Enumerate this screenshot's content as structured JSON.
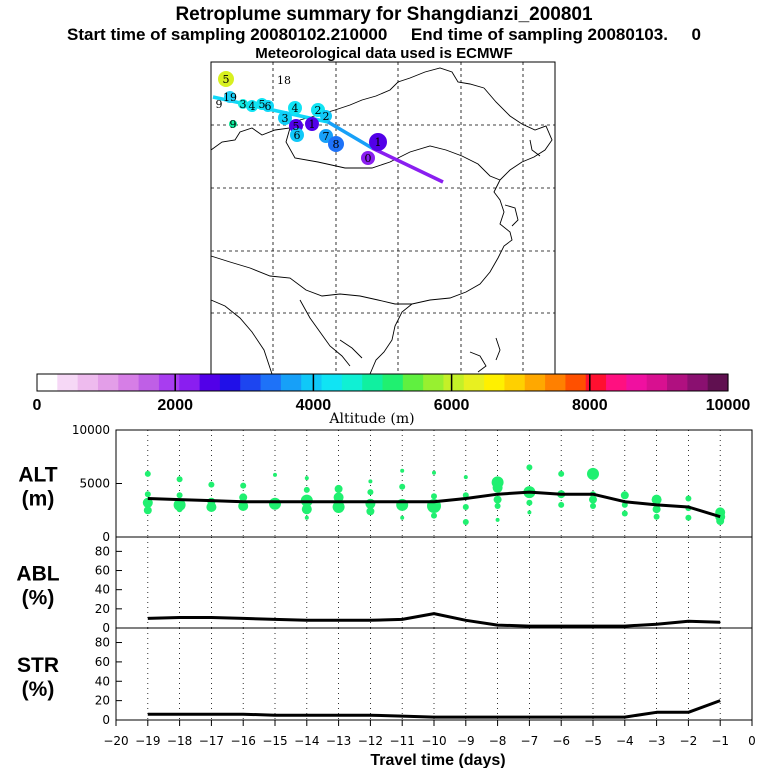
{
  "header": {
    "title": "Retroplume summary for Shangdianzi_200801",
    "subtitle": "Start time of sampling 20080102.210000     End time of sampling 20080103.     0",
    "met": "Meteorological data used is ECMWF"
  },
  "colorbar": {
    "label": "Altitude (m)",
    "ticks": [
      "0",
      "2000",
      "4000",
      "6000",
      "8000",
      "10000"
    ],
    "colors": [
      "#ffffff",
      "#f6d8f6",
      "#eebbee",
      "#e39ee8",
      "#d67ee6",
      "#bf5fe6",
      "#a83df0",
      "#8a1ef0",
      "#5200e8",
      "#2010e8",
      "#1d45f0",
      "#1e72f8",
      "#17a0f8",
      "#10c8f8",
      "#10e4f4",
      "#10f0d4",
      "#10f0a0",
      "#20f070",
      "#60f040",
      "#98f030",
      "#c4f028",
      "#e8f020",
      "#fff000",
      "#ffd000",
      "#ffa800",
      "#ff8000",
      "#ff5000",
      "#ff1030",
      "#ff1080",
      "#f010a0",
      "#d81090",
      "#b01080",
      "#8a1070",
      "#601050"
    ]
  },
  "map": {
    "plume_labels": [
      "5",
      "18",
      "19",
      "4",
      "5",
      "6",
      "3",
      "4",
      "2",
      "9",
      "9",
      "3",
      "1",
      "2",
      "5",
      "6",
      "7",
      "8",
      "1",
      "0"
    ]
  },
  "chart_data": [
    {
      "type": "scatter+line",
      "name": "ALT",
      "ylabel": "ALT\n(m)",
      "ylabel_line1": "ALT",
      "ylabel_line2": "(m)",
      "ylim": [
        0,
        10000
      ],
      "yticks": [
        "0",
        "5000",
        "10000"
      ],
      "xlim": [
        -20,
        0
      ],
      "x": [
        -19,
        -18,
        -17,
        -16,
        -15,
        -14,
        -13,
        -12,
        -11,
        -10,
        -9,
        -8,
        -7,
        -6,
        -5,
        -4,
        -3,
        -2,
        -1
      ],
      "values": [
        3600,
        3500,
        3400,
        3300,
        3300,
        3300,
        3300,
        3300,
        3300,
        3300,
        3600,
        4000,
        4200,
        4000,
        4000,
        3300,
        3000,
        2800,
        1900
      ],
      "points": [
        [
          -19,
          5900,
          3
        ],
        [
          -19,
          4000,
          3
        ],
        [
          -19,
          3200,
          5
        ],
        [
          -19,
          2500,
          4
        ],
        [
          -18,
          5400,
          3
        ],
        [
          -18,
          3900,
          3
        ],
        [
          -18,
          3000,
          6
        ],
        [
          -18,
          2600,
          3
        ],
        [
          -17,
          4900,
          3
        ],
        [
          -17,
          3300,
          4
        ],
        [
          -17,
          2800,
          5
        ],
        [
          -16,
          4800,
          3
        ],
        [
          -16,
          3700,
          4
        ],
        [
          -16,
          2900,
          5
        ],
        [
          -15,
          5800,
          2
        ],
        [
          -15,
          3100,
          6
        ],
        [
          -14,
          5500,
          2
        ],
        [
          -14,
          4400,
          3
        ],
        [
          -14,
          3400,
          6
        ],
        [
          -14,
          2600,
          5
        ],
        [
          -14,
          1800,
          2
        ],
        [
          -13,
          4500,
          4
        ],
        [
          -13,
          3700,
          5
        ],
        [
          -13,
          2800,
          6
        ],
        [
          -12,
          5200,
          2
        ],
        [
          -12,
          4200,
          3
        ],
        [
          -12,
          3100,
          5
        ],
        [
          -12,
          2400,
          4
        ],
        [
          -11,
          6200,
          2
        ],
        [
          -11,
          4700,
          3
        ],
        [
          -11,
          3000,
          6
        ],
        [
          -11,
          1800,
          2
        ],
        [
          -10,
          6000,
          2
        ],
        [
          -10,
          3800,
          3
        ],
        [
          -10,
          2900,
          7
        ],
        [
          -10,
          2000,
          3
        ],
        [
          -9,
          5600,
          2
        ],
        [
          -9,
          3900,
          3
        ],
        [
          -9,
          2800,
          3
        ],
        [
          -9,
          1400,
          3
        ],
        [
          -8,
          5100,
          6
        ],
        [
          -8,
          4600,
          5
        ],
        [
          -8,
          3500,
          4
        ],
        [
          -8,
          2900,
          3
        ],
        [
          -8,
          1600,
          2
        ],
        [
          -7,
          6500,
          3
        ],
        [
          -7,
          4200,
          6
        ],
        [
          -7,
          3200,
          3
        ],
        [
          -7,
          2300,
          2
        ],
        [
          -6,
          5900,
          3
        ],
        [
          -6,
          4000,
          4
        ],
        [
          -6,
          3000,
          3
        ],
        [
          -5,
          5900,
          6
        ],
        [
          -5,
          4000,
          3
        ],
        [
          -5,
          3500,
          4
        ],
        [
          -5,
          2900,
          3
        ],
        [
          -4,
          3900,
          4
        ],
        [
          -4,
          3000,
          3
        ],
        [
          -4,
          2200,
          3
        ],
        [
          -3,
          3500,
          5
        ],
        [
          -3,
          2600,
          4
        ],
        [
          -3,
          1900,
          3
        ],
        [
          -2,
          3600,
          3
        ],
        [
          -2,
          2700,
          3
        ],
        [
          -2,
          1800,
          3
        ],
        [
          -1,
          2300,
          5
        ],
        [
          -1,
          1900,
          5
        ],
        [
          -1,
          1500,
          4
        ]
      ]
    },
    {
      "type": "line",
      "name": "ABL",
      "ylabel_line1": "ABL",
      "ylabel_line2": "(%)",
      "ylim": [
        0,
        95
      ],
      "yticks": [
        "0",
        "20",
        "40",
        "60",
        "80"
      ],
      "xlim": [
        -20,
        0
      ],
      "x": [
        -19,
        -18,
        -17,
        -16,
        -15,
        -14,
        -13,
        -12,
        -11,
        -10,
        -9,
        -8,
        -7,
        -6,
        -5,
        -4,
        -3,
        -2,
        -1
      ],
      "values": [
        10,
        11,
        11,
        10,
        9,
        8,
        8,
        8,
        9,
        15,
        8,
        3,
        2,
        2,
        2,
        2,
        4,
        7,
        6
      ]
    },
    {
      "type": "line",
      "name": "STR",
      "ylabel_line1": "STR",
      "ylabel_line2": "(%)",
      "ylim": [
        0,
        95
      ],
      "yticks": [
        "0",
        "20",
        "40",
        "60",
        "80"
      ],
      "xlim": [
        -20,
        0
      ],
      "x": [
        -19,
        -18,
        -17,
        -16,
        -15,
        -14,
        -13,
        -12,
        -11,
        -10,
        -9,
        -8,
        -7,
        -6,
        -5,
        -4,
        -3,
        -2,
        -1
      ],
      "values": [
        6,
        6,
        6,
        6,
        5,
        5,
        5,
        5,
        4,
        3,
        3,
        3,
        3,
        3,
        3,
        3,
        8,
        8,
        20
      ]
    }
  ],
  "xaxis": {
    "label": "Travel time (days)",
    "ticks": [
      "−20",
      "−19",
      "−18",
      "−17",
      "−16",
      "−15",
      "−14",
      "−13",
      "−12",
      "−11",
      "−10",
      "−9",
      "−8",
      "−7",
      "−6",
      "−5",
      "−4",
      "−3",
      "−2",
      "−1",
      "0"
    ]
  }
}
